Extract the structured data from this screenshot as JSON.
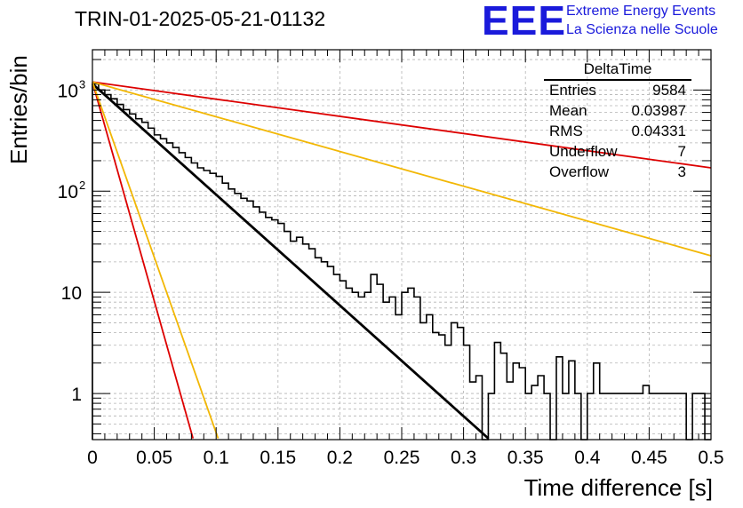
{
  "header": {
    "title": "TRIN-01-2025-05-21-01132",
    "logo_mark": "EEE",
    "logo_line1": "Extreme Energy Events",
    "logo_line2": "La Scienza nelle Scuole"
  },
  "stats_box": {
    "title": "DeltaTime",
    "rows": [
      {
        "label": "Entries",
        "value": "9584"
      },
      {
        "label": "Mean",
        "value": "0.03987"
      },
      {
        "label": "RMS",
        "value": "0.04331"
      },
      {
        "label": "Underflow",
        "value": "7"
      },
      {
        "label": "Overflow",
        "value": "3"
      }
    ]
  },
  "chart_data": {
    "type": "line",
    "title": "TRIN-01-2025-05-21-01132",
    "xlabel": "Time difference [s]",
    "ylabel": "Entries/bin",
    "xlim": [
      0,
      0.5
    ],
    "ylim": [
      0.35,
      2500
    ],
    "yscale": "log",
    "grid": true,
    "x_ticks": [
      "0",
      "0.05",
      "0.1",
      "0.15",
      "0.2",
      "0.25",
      "0.3",
      "0.35",
      "0.4",
      "0.45",
      "0.5"
    ],
    "y_ticks": [
      {
        "value": 1,
        "base": "1",
        "exp": ""
      },
      {
        "value": 10,
        "base": "10",
        "exp": ""
      },
      {
        "value": 100,
        "base": "10",
        "exp": "2"
      },
      {
        "value": 1000,
        "base": "10",
        "exp": "3"
      }
    ],
    "histogram": {
      "bin_width": 0.005,
      "x_start": 0.0,
      "color": "#000000",
      "values": [
        1150,
        1000,
        900,
        820,
        720,
        640,
        580,
        520,
        480,
        420,
        360,
        330,
        300,
        270,
        240,
        215,
        190,
        170,
        160,
        150,
        140,
        120,
        105,
        95,
        85,
        80,
        70,
        62,
        55,
        52,
        48,
        40,
        32,
        35,
        30,
        27,
        22,
        20,
        18,
        15,
        13,
        11,
        10,
        9,
        10,
        15,
        12,
        8,
        9,
        6,
        10,
        11,
        9,
        5,
        6,
        4,
        3.8,
        3,
        5,
        4.5,
        3,
        1.3,
        1.5,
        0,
        1,
        3.2,
        2.5,
        1.3,
        2,
        1.8,
        1,
        1.2,
        1.5,
        1,
        0,
        2.3,
        1,
        2.1,
        1,
        0,
        1,
        2,
        1,
        1,
        1,
        1,
        1,
        1,
        1,
        1.2,
        1,
        1,
        1,
        1,
        1,
        1,
        0,
        1,
        1,
        0
      ]
    },
    "fits": [
      {
        "name": "",
        "color": "#000000",
        "x": [
          0.0,
          0.32
        ],
        "y": [
          1150,
          0.36
        ]
      },
      {
        "name": "",
        "color": "#dd0000",
        "x": [
          0.0,
          0.5
        ],
        "y": [
          1200,
          170
        ]
      },
      {
        "name": "",
        "color": "#f2b705",
        "x": [
          0.0,
          0.5
        ],
        "y": [
          1200,
          23
        ]
      },
      {
        "name": "",
        "color": "#dd0000",
        "x": [
          0.0,
          0.0813
        ],
        "y": [
          1200,
          0.36
        ]
      },
      {
        "name": "",
        "color": "#f2b705",
        "x": [
          0.0,
          0.1016
        ],
        "y": [
          1200,
          0.36
        ]
      }
    ]
  }
}
